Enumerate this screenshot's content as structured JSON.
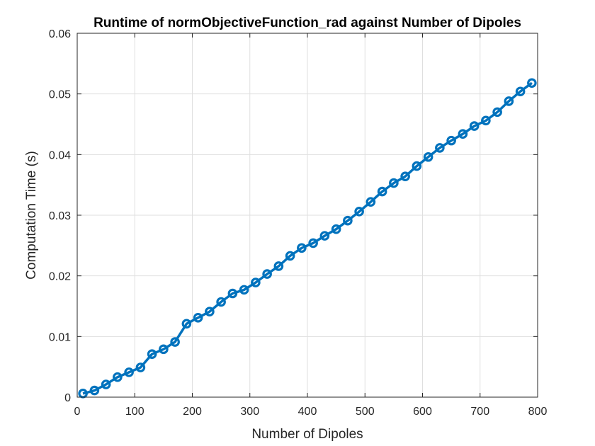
{
  "chart_data": {
    "type": "line",
    "title": "Runtime of normObjectiveFunction_rad against Number of Dipoles",
    "xlabel": "Number of Dipoles",
    "ylabel": "Computation Time (s)",
    "xlim": [
      0,
      800
    ],
    "ylim": [
      0,
      0.06
    ],
    "xticks": [
      0,
      100,
      200,
      300,
      400,
      500,
      600,
      700,
      800
    ],
    "xtick_labels": [
      "0",
      "100",
      "200",
      "300",
      "400",
      "500",
      "600",
      "700",
      "800"
    ],
    "yticks": [
      0,
      0.01,
      0.02,
      0.03,
      0.04,
      0.05,
      0.06
    ],
    "ytick_labels": [
      "0",
      "0.01",
      "0.02",
      "0.03",
      "0.04",
      "0.05",
      "0.06"
    ],
    "grid": true,
    "marker": "circle",
    "color": "#0072bd",
    "series": [
      {
        "x": [
          10,
          30,
          50,
          70,
          90,
          110,
          130,
          150,
          170,
          190,
          210,
          230,
          250,
          270,
          290,
          310,
          330,
          350,
          370,
          390,
          410,
          430,
          450,
          470,
          490,
          510,
          530,
          550,
          570,
          590,
          610,
          630,
          650,
          670,
          690,
          710,
          730,
          750,
          770,
          790
        ],
        "values": [
          0.0006,
          0.0011,
          0.0021,
          0.0033,
          0.0041,
          0.0049,
          0.0071,
          0.0079,
          0.0091,
          0.0121,
          0.0131,
          0.0141,
          0.0157,
          0.0171,
          0.0177,
          0.0189,
          0.0203,
          0.0216,
          0.0233,
          0.0246,
          0.0254,
          0.0266,
          0.0277,
          0.0291,
          0.0306,
          0.0322,
          0.0339,
          0.0353,
          0.0364,
          0.0381,
          0.0396,
          0.0411,
          0.0423,
          0.0434,
          0.0447,
          0.0456,
          0.047,
          0.0488,
          0.0504,
          0.0518
        ]
      }
    ]
  }
}
